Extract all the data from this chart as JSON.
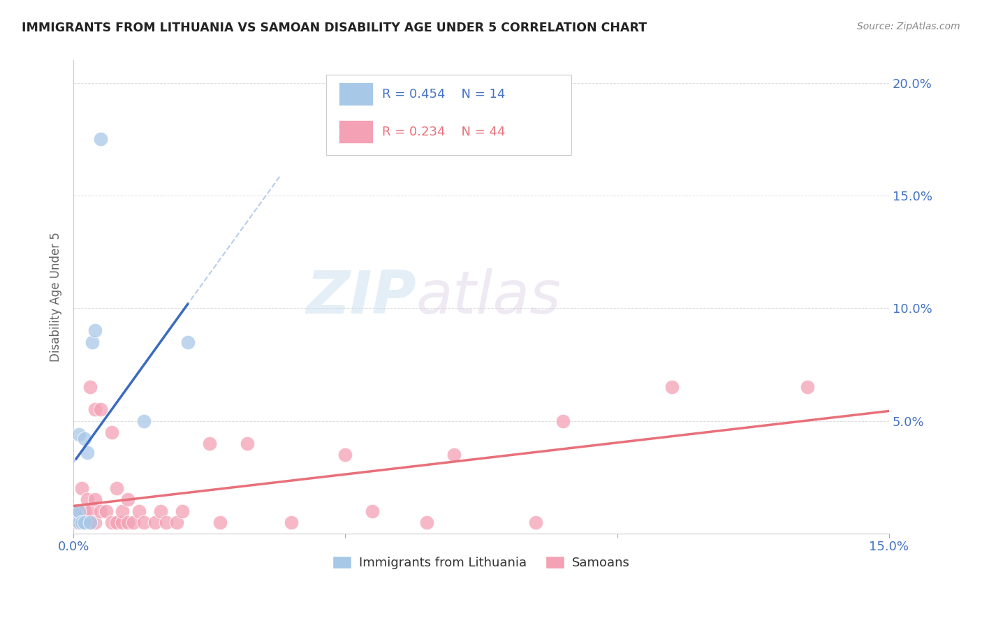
{
  "title": "IMMIGRANTS FROM LITHUANIA VS SAMOAN DISABILITY AGE UNDER 5 CORRELATION CHART",
  "source": "Source: ZipAtlas.com",
  "ylabel": "Disability Age Under 5",
  "xlim": [
    0.0,
    0.15
  ],
  "ylim": [
    0.0,
    0.21
  ],
  "xticks": [
    0.0,
    0.05,
    0.1,
    0.15
  ],
  "xtick_labels": [
    "0.0%",
    "",
    "",
    "15.0%"
  ],
  "yticks": [
    0.0,
    0.05,
    0.1,
    0.15,
    0.2
  ],
  "ytick_labels_right": [
    "",
    "5.0%",
    "10.0%",
    "15.0%",
    "20.0%"
  ],
  "blue_color": "#a8c8e8",
  "pink_color": "#f4a0b5",
  "blue_line_color": "#3a6bbf",
  "pink_line_color": "#e8707a",
  "blue_dashed_color": "#b0c8e8",
  "zip_color": "#c8dff0",
  "atlas_color": "#d8c8e0",
  "background_color": "#ffffff",
  "grid_color": "#dddddd",
  "tick_color": "#4472c4",
  "legend_r1_color": "#4472c4",
  "legend_r2_color": "#e8707a",
  "lithuania_x": [
    0.0005,
    0.001,
    0.001,
    0.001,
    0.0015,
    0.002,
    0.002,
    0.0025,
    0.003,
    0.0035,
    0.004,
    0.005,
    0.013,
    0.021
  ],
  "lithuania_y": [
    0.008,
    0.005,
    0.01,
    0.044,
    0.005,
    0.005,
    0.042,
    0.036,
    0.005,
    0.085,
    0.09,
    0.175,
    0.05,
    0.085
  ],
  "samoan_x": [
    0.0005,
    0.001,
    0.001,
    0.0015,
    0.002,
    0.002,
    0.0025,
    0.003,
    0.003,
    0.003,
    0.004,
    0.004,
    0.004,
    0.005,
    0.005,
    0.006,
    0.007,
    0.007,
    0.008,
    0.008,
    0.009,
    0.009,
    0.01,
    0.01,
    0.011,
    0.012,
    0.013,
    0.015,
    0.016,
    0.017,
    0.019,
    0.02,
    0.025,
    0.027,
    0.032,
    0.04,
    0.05,
    0.055,
    0.065,
    0.07,
    0.085,
    0.09,
    0.11,
    0.135
  ],
  "samoan_y": [
    0.005,
    0.005,
    0.01,
    0.02,
    0.005,
    0.01,
    0.015,
    0.005,
    0.01,
    0.065,
    0.005,
    0.015,
    0.055,
    0.01,
    0.055,
    0.01,
    0.005,
    0.045,
    0.005,
    0.02,
    0.005,
    0.01,
    0.005,
    0.015,
    0.005,
    0.01,
    0.005,
    0.005,
    0.01,
    0.005,
    0.005,
    0.01,
    0.04,
    0.005,
    0.04,
    0.005,
    0.035,
    0.01,
    0.005,
    0.035,
    0.005,
    0.05,
    0.065,
    0.065
  ]
}
